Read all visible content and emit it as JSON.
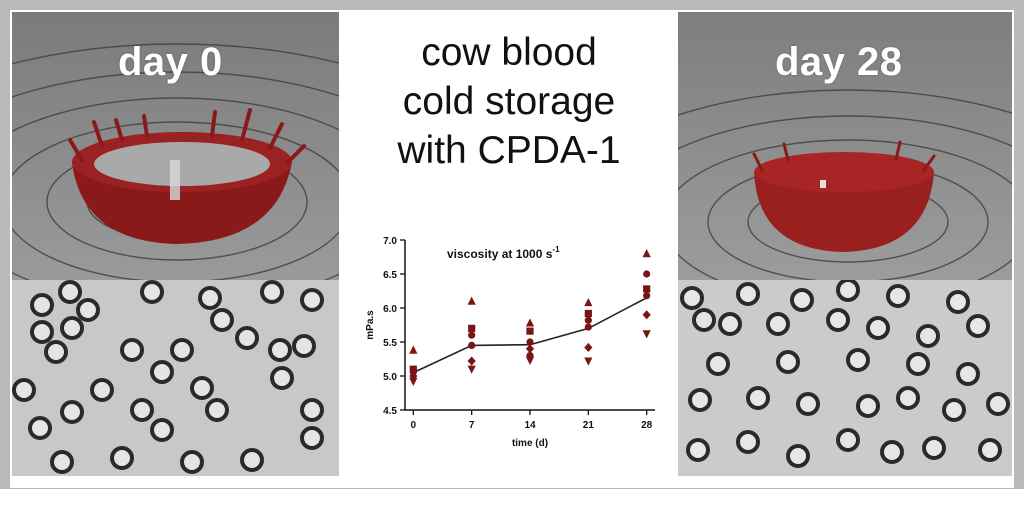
{
  "left_label": "day 0",
  "right_label": "day 28",
  "title_lines": [
    "cow blood",
    "cold storage",
    "with CPDA-1"
  ],
  "colors": {
    "blood": "#8a1a1a",
    "marker": "#7a1515",
    "frame": "#b9b9b9"
  },
  "chart_data": {
    "type": "scatter",
    "title": "viscosity at 1000 s",
    "title_superscript": "-1",
    "xlabel": "time (d)",
    "ylabel": "mPa.s",
    "xticks": [
      0,
      7,
      14,
      21,
      28
    ],
    "xtick_labels": [
      "0",
      "7",
      "14",
      "21",
      "28"
    ],
    "yticks": [
      4.5,
      5.0,
      5.5,
      6.0,
      6.5,
      7.0
    ],
    "ytick_labels": [
      "4.5",
      "5.0",
      "5.5",
      "6.0",
      "6.5",
      "7.0"
    ],
    "ylim": [
      4.5,
      7.0
    ],
    "xlim": [
      -1,
      29
    ],
    "mean_line": {
      "x": [
        0,
        7,
        14,
        21,
        28
      ],
      "y": [
        5.05,
        5.45,
        5.46,
        5.7,
        6.15
      ]
    },
    "points": [
      {
        "x": 0,
        "y": 5.38,
        "marker": "triangle-up"
      },
      {
        "x": 0,
        "y": 5.1,
        "marker": "square"
      },
      {
        "x": 0,
        "y": 5.06,
        "marker": "circle"
      },
      {
        "x": 0,
        "y": 5.0,
        "marker": "diamond"
      },
      {
        "x": 0,
        "y": 4.92,
        "marker": "triangle-down"
      },
      {
        "x": 7,
        "y": 6.1,
        "marker": "triangle-up"
      },
      {
        "x": 7,
        "y": 5.7,
        "marker": "square"
      },
      {
        "x": 7,
        "y": 5.6,
        "marker": "circle"
      },
      {
        "x": 7,
        "y": 5.45,
        "marker": "circle"
      },
      {
        "x": 7,
        "y": 5.22,
        "marker": "diamond"
      },
      {
        "x": 7,
        "y": 5.1,
        "marker": "triangle-down"
      },
      {
        "x": 14,
        "y": 5.78,
        "marker": "triangle-up"
      },
      {
        "x": 14,
        "y": 5.66,
        "marker": "square"
      },
      {
        "x": 14,
        "y": 5.5,
        "marker": "circle"
      },
      {
        "x": 14,
        "y": 5.4,
        "marker": "diamond"
      },
      {
        "x": 14,
        "y": 5.3,
        "marker": "circle"
      },
      {
        "x": 14,
        "y": 5.23,
        "marker": "triangle-down"
      },
      {
        "x": 21,
        "y": 6.08,
        "marker": "triangle-up"
      },
      {
        "x": 21,
        "y": 5.92,
        "marker": "square"
      },
      {
        "x": 21,
        "y": 5.82,
        "marker": "circle"
      },
      {
        "x": 21,
        "y": 5.72,
        "marker": "circle"
      },
      {
        "x": 21,
        "y": 5.42,
        "marker": "diamond"
      },
      {
        "x": 21,
        "y": 5.22,
        "marker": "triangle-down"
      },
      {
        "x": 28,
        "y": 6.8,
        "marker": "triangle-up"
      },
      {
        "x": 28,
        "y": 6.5,
        "marker": "circle"
      },
      {
        "x": 28,
        "y": 6.28,
        "marker": "square"
      },
      {
        "x": 28,
        "y": 6.18,
        "marker": "circle"
      },
      {
        "x": 28,
        "y": 5.9,
        "marker": "diamond"
      },
      {
        "x": 28,
        "y": 5.62,
        "marker": "triangle-down"
      }
    ]
  }
}
